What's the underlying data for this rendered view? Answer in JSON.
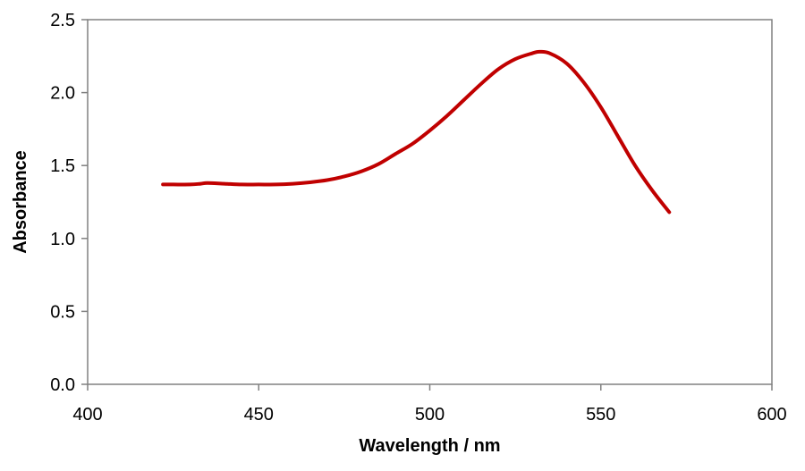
{
  "chart_data": {
    "type": "line",
    "title": "",
    "xlabel": "Wavelength / nm",
    "ylabel": "Absorbance",
    "xlim": [
      400,
      600
    ],
    "ylim": [
      0,
      2.5
    ],
    "xticks": [
      "400",
      "450",
      "500",
      "550",
      "600"
    ],
    "yticks": [
      "0.0",
      "0.5",
      "1.0",
      "1.5",
      "2.0",
      "2.5"
    ],
    "grid": false,
    "legend": "none",
    "colors": {
      "series": "#c00000",
      "plot_border": "#808080",
      "axis": "#808080"
    },
    "series": [
      {
        "x": [
          422,
          425,
          430,
          433,
          435,
          440,
          445,
          450,
          455,
          460,
          465,
          470,
          475,
          480,
          485,
          490,
          495,
          500,
          505,
          510,
          515,
          520,
          525,
          530,
          532,
          535,
          540,
          545,
          550,
          555,
          560,
          565,
          570
        ],
        "y": [
          1.37,
          1.37,
          1.37,
          1.375,
          1.38,
          1.375,
          1.37,
          1.37,
          1.37,
          1.375,
          1.385,
          1.4,
          1.425,
          1.46,
          1.51,
          1.58,
          1.65,
          1.74,
          1.84,
          1.95,
          2.06,
          2.16,
          2.23,
          2.27,
          2.28,
          2.27,
          2.2,
          2.07,
          1.9,
          1.7,
          1.5,
          1.33,
          1.18
        ]
      }
    ]
  }
}
